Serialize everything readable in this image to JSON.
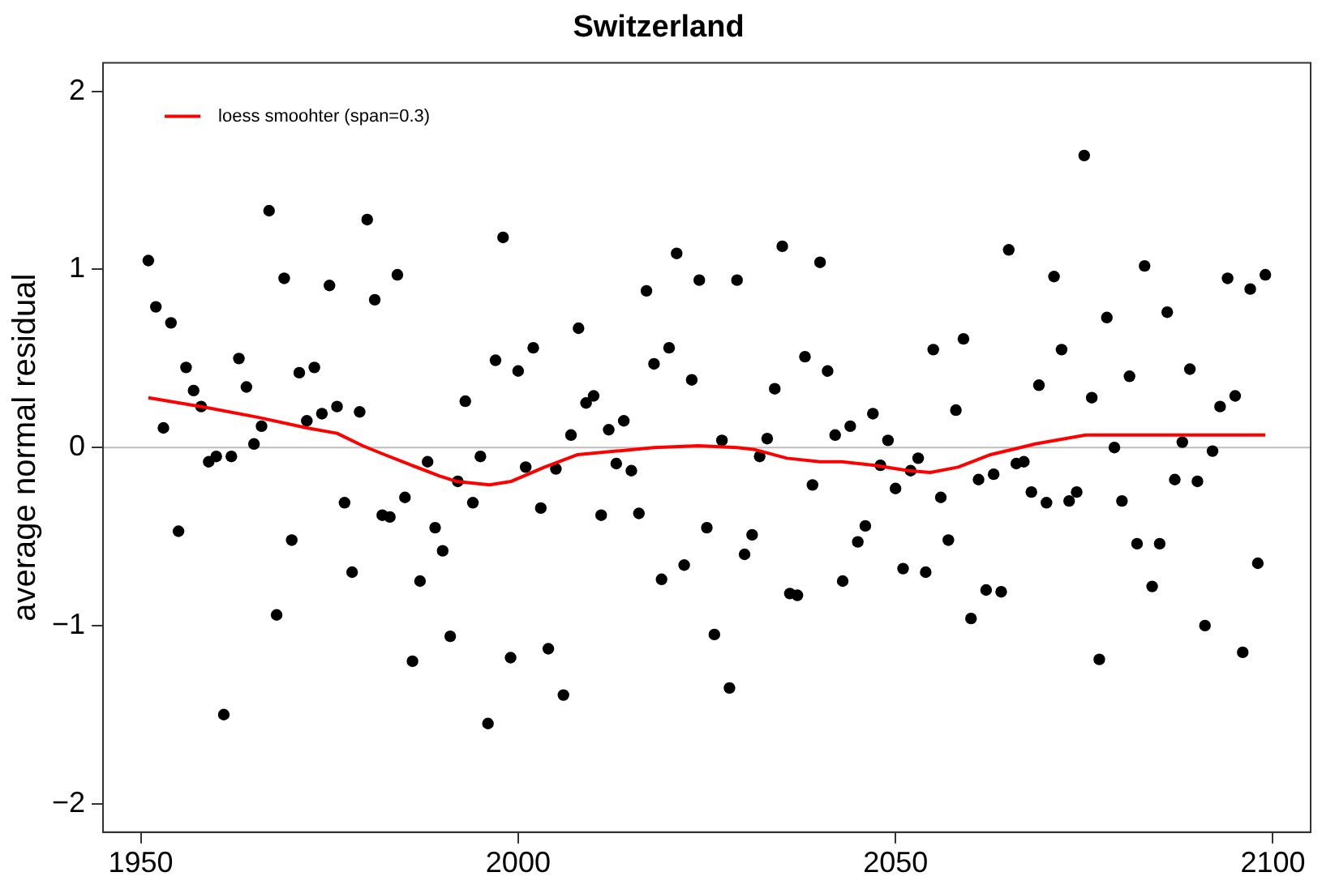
{
  "chart_data": {
    "type": "scatter",
    "title": "Switzerland",
    "ylabel": "average normal residual",
    "xlim": [
      1945,
      2105
    ],
    "xticks": [
      1950,
      2000,
      2050,
      2100
    ],
    "ylim": [
      -2.16,
      2.16
    ],
    "yticks": [
      {
        "value": -2,
        "label": "−2"
      },
      {
        "value": -1,
        "label": "−1"
      },
      0,
      1,
      2
    ],
    "grid": false,
    "legend": "top left",
    "ref_lines": [
      {
        "axis": "y",
        "value": 0,
        "color": "#bebebe"
      }
    ],
    "series": [
      {
        "color": "#000000",
        "marker": "circle",
        "x": [
          1951,
          1952,
          1953,
          1954,
          1955,
          1956,
          1957,
          1958,
          1959,
          1960,
          1961,
          1962,
          1963,
          1964,
          1965,
          1966,
          1967,
          1968,
          1969,
          1970,
          1971,
          1972,
          1973,
          1974,
          1975,
          1976,
          1977,
          1978,
          1979,
          1980,
          1981,
          1982,
          1983,
          1984,
          1985,
          1986,
          1987,
          1988,
          1989,
          1990,
          1991,
          1992,
          1993,
          1994,
          1995,
          1996,
          1997,
          1998,
          1999,
          2000,
          2001,
          2002,
          2003,
          2004,
          2005,
          2006,
          2007,
          2008,
          2009,
          2010,
          2011,
          2012,
          2013,
          2014,
          2015,
          2016,
          2017,
          2018,
          2019,
          2020,
          2021,
          2022,
          2023,
          2024,
          2025,
          2026,
          2027,
          2028,
          2029,
          2030,
          2031,
          2032,
          2033,
          2034,
          2035,
          2036,
          2037,
          2038,
          2039,
          2040,
          2041,
          2042,
          2043,
          2044,
          2045,
          2046,
          2047,
          2048,
          2049,
          2050,
          2051,
          2052,
          2053,
          2054,
          2055,
          2056,
          2057,
          2058,
          2059,
          2060,
          2061,
          2062,
          2063,
          2064,
          2065,
          2066,
          2067,
          2068,
          2069,
          2070,
          2071,
          2072,
          2073,
          2074,
          2075,
          2076,
          2077,
          2078,
          2079,
          2080,
          2081,
          2082,
          2083,
          2084,
          2085,
          2086,
          2087,
          2088,
          2089,
          2090,
          2091,
          2092,
          2093,
          2094,
          2095,
          2096,
          2097,
          2098,
          2099
        ],
        "values": [
          1.05,
          0.79,
          0.11,
          0.7,
          -0.47,
          0.45,
          0.32,
          0.23,
          -0.08,
          -0.05,
          -1.5,
          -0.05,
          0.5,
          0.34,
          0.02,
          0.12,
          1.33,
          -0.94,
          0.95,
          -0.52,
          0.42,
          0.15,
          0.45,
          0.19,
          0.91,
          0.23,
          -0.31,
          -0.7,
          0.2,
          1.28,
          0.83,
          -0.38,
          -0.39,
          0.97,
          -0.28,
          -1.2,
          -0.75,
          -0.08,
          -0.45,
          -0.58,
          -1.06,
          -0.19,
          0.26,
          -0.31,
          -0.05,
          -1.55,
          0.49,
          1.18,
          -1.18,
          0.43,
          -0.11,
          0.56,
          -0.34,
          -1.13,
          -0.12,
          -1.39,
          0.07,
          0.67,
          0.25,
          0.29,
          -0.38,
          0.1,
          -0.09,
          0.15,
          -0.13,
          -0.37,
          0.88,
          0.47,
          -0.74,
          0.56,
          1.09,
          -0.66,
          0.38,
          0.94,
          -0.45,
          -1.05,
          0.04,
          -1.35,
          0.94,
          -0.6,
          -0.49,
          -0.05,
          0.05,
          0.33,
          1.13,
          -0.82,
          -0.83,
          0.51,
          -0.21,
          1.04,
          0.43,
          0.07,
          -0.75,
          0.12,
          -0.53,
          -0.44,
          0.19,
          -0.1,
          0.04,
          -0.23,
          -0.68,
          -0.13,
          -0.06,
          -0.7,
          0.55,
          -0.28,
          -0.52,
          0.21,
          0.61,
          -0.96,
          -0.18,
          -0.8,
          -0.15,
          -0.81,
          1.11,
          -0.09,
          -0.08,
          -0.25,
          0.35,
          -0.31,
          0.96,
          0.55,
          -0.3,
          -0.25,
          1.64,
          0.28,
          -1.19,
          0.73,
          0.0,
          -0.3,
          0.4,
          -0.54,
          1.02,
          -0.78,
          -0.54,
          0.76,
          -0.18,
          0.03,
          0.44,
          -0.19,
          -1.0,
          -0.02,
          0.23,
          0.95,
          0.29,
          -1.15,
          0.89,
          -0.65,
          0.97
        ]
      },
      {
        "type": "line",
        "name": "loess smoohter (span=0.3)",
        "color": "#ff0000",
        "marker": "none",
        "line_style": "solid",
        "x": [
          1951,
          1958,
          1965.5,
          1972,
          1976,
          1979.4,
          1982.3,
          1985.3,
          1989.6,
          1991.8,
          1996.2,
          1999.1,
          2003.5,
          2007.9,
          2013,
          2018,
          2023.9,
          2029,
          2031.2,
          2035.6,
          2040,
          2042.9,
          2047.3,
          2051.7,
          2054.6,
          2058.3,
          2062.6,
          2068.5,
          2075.2,
          2080.9,
          2088.2,
          2099
        ],
        "values": [
          0.28,
          0.23,
          0.17,
          0.11,
          0.08,
          0.01,
          -0.04,
          -0.09,
          -0.16,
          -0.19,
          -0.21,
          -0.19,
          -0.11,
          -0.04,
          -0.02,
          0.0,
          0.01,
          0.0,
          -0.01,
          -0.06,
          -0.08,
          -0.08,
          -0.1,
          -0.13,
          -0.14,
          -0.11,
          -0.04,
          0.02,
          0.07,
          0.07,
          0.07,
          0.07
        ]
      }
    ]
  }
}
